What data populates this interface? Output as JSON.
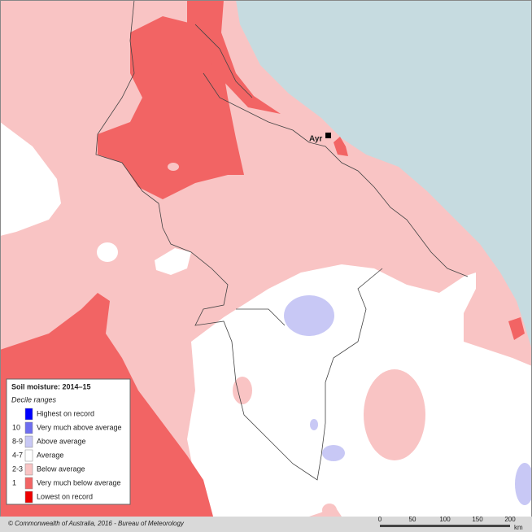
{
  "legend": {
    "title": "Soil moisture: 2014–15",
    "subtitle": "Decile ranges",
    "items": [
      {
        "label": "Highest on record",
        "color": "#0000ff"
      },
      {
        "code": "10",
        "label": "Very much above average",
        "color": "#6e6ef0"
      },
      {
        "code": "8-9",
        "label": "Above average",
        "color": "#c8c8f5"
      },
      {
        "code": "4-7",
        "label": "Average",
        "color": "#ffffff"
      },
      {
        "code": "2-3",
        "label": "Below average",
        "color": "#f9c4c4"
      },
      {
        "code": "1",
        "label": "Very much below average",
        "color": "#f26464"
      },
      {
        "label": "Lowest on record",
        "color": "#ee0000"
      }
    ]
  },
  "places": [
    {
      "name": "Ayr"
    }
  ],
  "footer": {
    "credit": "© Commonwealth of Australia, 2016 - Bureau of Meteorology"
  },
  "scale": {
    "ticks": [
      0,
      50,
      100,
      150,
      200
    ],
    "unit": "km"
  }
}
